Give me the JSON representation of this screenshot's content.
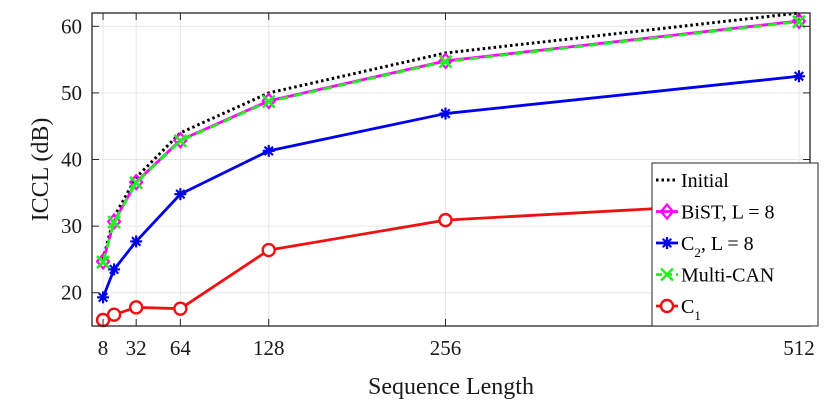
{
  "chart_data": {
    "type": "line",
    "xlabel": "Sequence Length",
    "ylabel": "ICCL (dB)",
    "xlim": [
      0,
      520
    ],
    "ylim": [
      15,
      62
    ],
    "xticks": [
      8,
      32,
      64,
      128,
      256,
      512
    ],
    "xtick_labels": [
      "8",
      "32",
      "64",
      "128",
      "256",
      "512"
    ],
    "yticks": [
      20,
      30,
      40,
      50,
      60
    ],
    "ytick_labels": [
      "20",
      "30",
      "40",
      "50",
      "60"
    ],
    "grid": true,
    "legend_position": "bottom-right",
    "series": [
      {
        "name": "Initial",
        "legend_main": "Initial",
        "legend_sub": "",
        "legend_rest": "",
        "color": "#000000",
        "style": "dotted",
        "marker": "none",
        "x": [
          8,
          16,
          32,
          64,
          128,
          256,
          512
        ],
        "y": [
          25.0,
          31.4,
          37.3,
          44.0,
          50.0,
          56.0,
          62.0
        ]
      },
      {
        "name": "BiST, L = 8",
        "legend_main": "BiST, L = 8",
        "legend_sub": "",
        "legend_rest": "",
        "color": "#ff00ff",
        "style": "solid",
        "marker": "diamond",
        "x": [
          8,
          16,
          32,
          64,
          128,
          256,
          512
        ],
        "y": [
          24.7,
          30.7,
          36.6,
          42.9,
          48.8,
          54.8,
          60.8
        ]
      },
      {
        "name": "C2, L = 8",
        "legend_main": "C",
        "legend_sub": "2",
        "legend_rest": ", L = 8",
        "color": "#0000ee",
        "style": "solid",
        "marker": "asterisk",
        "x": [
          8,
          16,
          32,
          64,
          128,
          256,
          512
        ],
        "y": [
          19.3,
          23.5,
          27.7,
          34.8,
          41.3,
          46.9,
          52.5
        ]
      },
      {
        "name": "Multi-CAN",
        "legend_main": "Multi-CAN",
        "legend_sub": "",
        "legend_rest": "",
        "color": "#22ee22",
        "style": "dashed",
        "marker": "x",
        "x": [
          8,
          16,
          32,
          64,
          128,
          256,
          512
        ],
        "y": [
          24.6,
          30.6,
          36.5,
          42.8,
          48.7,
          54.7,
          60.7
        ]
      },
      {
        "name": "C1",
        "legend_main": "C",
        "legend_sub": "1",
        "legend_rest": "",
        "color": "#ee1111",
        "style": "solid",
        "marker": "circle",
        "x": [
          8,
          16,
          32,
          64,
          128,
          256,
          512
        ],
        "y": [
          15.9,
          16.7,
          17.8,
          17.6,
          26.4,
          30.9,
          33.8
        ]
      }
    ]
  }
}
